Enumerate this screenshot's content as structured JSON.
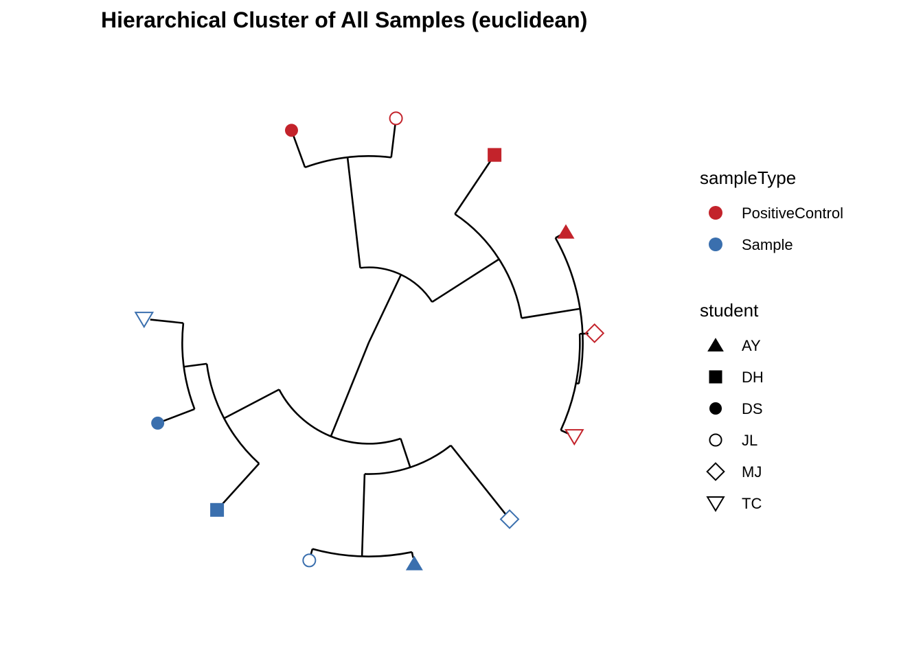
{
  "chart_data": {
    "type": "dendrogram",
    "layout": "circular",
    "title": "Hierarchical Cluster of All Samples (euclidean)",
    "distance": "euclidean",
    "colors": {
      "PositiveControl": "#C3232B",
      "Sample": "#3A6FAE",
      "line": "#000000"
    },
    "shapes": {
      "AY": "triangle-filled",
      "DH": "square-filled",
      "DS": "circle-filled",
      "JL": "circle-open",
      "MJ": "diamond-open",
      "TC": "triangle-down-open"
    },
    "leaves": [
      {
        "id": "PC_DS",
        "student": "DS",
        "sampleType": "PositiveControl"
      },
      {
        "id": "PC_JL",
        "student": "JL",
        "sampleType": "PositiveControl"
      },
      {
        "id": "PC_DH",
        "student": "DH",
        "sampleType": "PositiveControl"
      },
      {
        "id": "PC_AY",
        "student": "AY",
        "sampleType": "PositiveControl"
      },
      {
        "id": "PC_MJ",
        "student": "MJ",
        "sampleType": "PositiveControl"
      },
      {
        "id": "PC_TC",
        "student": "TC",
        "sampleType": "PositiveControl"
      },
      {
        "id": "S_MJ",
        "student": "MJ",
        "sampleType": "Sample"
      },
      {
        "id": "S_AY",
        "student": "AY",
        "sampleType": "Sample"
      },
      {
        "id": "S_JL",
        "student": "JL",
        "sampleType": "Sample"
      },
      {
        "id": "S_DH",
        "student": "DH",
        "sampleType": "Sample"
      },
      {
        "id": "S_DS",
        "student": "DS",
        "sampleType": "Sample"
      },
      {
        "id": "S_TC",
        "student": "TC",
        "sampleType": "Sample"
      }
    ],
    "merges": [
      {
        "id": "n_pc_jl_ds",
        "children": [
          "PC_JL",
          "PC_DS"
        ],
        "height": 0.23
      },
      {
        "id": "n_pc_mj_tc",
        "children": [
          "PC_MJ",
          "PC_TC"
        ],
        "height": 0.06
      },
      {
        "id": "n_pc_ay_mjtc",
        "children": [
          "PC_AY",
          "n_pc_mj_tc"
        ],
        "height": 0.04
      },
      {
        "id": "n_pc_dh_rest",
        "children": [
          "PC_DH",
          "n_pc_ay_mjtc"
        ],
        "height": 0.45
      },
      {
        "id": "n_pc",
        "children": [
          "n_pc_dh_rest",
          "n_pc_jl_ds"
        ],
        "height": 1.0
      },
      {
        "id": "n_s_ay_jl",
        "children": [
          "S_AY",
          "S_JL"
        ],
        "height": 0.04
      },
      {
        "id": "n_s_mj_ayjl",
        "children": [
          "S_MJ",
          "n_s_ay_jl"
        ],
        "height": 0.61
      },
      {
        "id": "n_s_ds_tc",
        "children": [
          "S_DS",
          "S_TC"
        ],
        "height": 0.23
      },
      {
        "id": "n_s_dh_dstc",
        "children": [
          "S_DH",
          "n_s_ds_tc"
        ],
        "height": 0.39
      },
      {
        "id": "n_s",
        "children": [
          "n_s_mj_ayjl",
          "n_s_dh_dstc"
        ],
        "height": 0.82
      },
      {
        "id": "root",
        "children": [
          "n_pc",
          "n_s"
        ],
        "height": 1.52
      }
    ]
  },
  "legend": {
    "sampleType": {
      "title": "sampleType",
      "items": [
        {
          "label": "PositiveControl",
          "color": "#C3232B"
        },
        {
          "label": "Sample",
          "color": "#3A6FAE"
        }
      ]
    },
    "student": {
      "title": "student",
      "items": [
        {
          "label": "AY",
          "shape": "triangle-filled"
        },
        {
          "label": "DH",
          "shape": "square-filled"
        },
        {
          "label": "DS",
          "shape": "circle-filled"
        },
        {
          "label": "JL",
          "shape": "circle-open"
        },
        {
          "label": "MJ",
          "shape": "diamond-open"
        },
        {
          "label": "TC",
          "shape": "triangle-down-open"
        }
      ]
    }
  }
}
